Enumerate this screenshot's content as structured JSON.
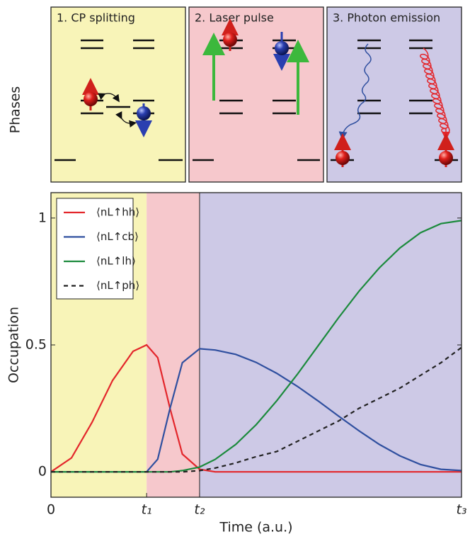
{
  "phases": {
    "label": "Phases",
    "panels": [
      {
        "title": "1. CP splitting",
        "color": "#f8f4b8"
      },
      {
        "title": "2. Laser pulse",
        "color": "#f6c8cc"
      },
      {
        "title": "3. Photon emission",
        "color": "#cdc9e6"
      }
    ]
  },
  "chart_data": {
    "type": "line",
    "x_label": "Time (a.u.)",
    "y_label": "Occupation",
    "x": [
      0,
      0.05,
      0.1,
      0.15,
      0.2,
      0.233,
      0.26,
      0.29,
      0.32,
      0.362,
      0.4,
      0.45,
      0.5,
      0.55,
      0.6,
      0.65,
      0.7,
      0.75,
      0.8,
      0.85,
      0.9,
      0.95,
      1
    ],
    "series": [
      {
        "name": "⟨nL↑hh⟩",
        "color": "#e3262b",
        "linestyle": "solid",
        "values": [
          0,
          0.055,
          0.195,
          0.36,
          0.475,
          0.5,
          0.45,
          0.25,
          0.07,
          0.01,
          0,
          0,
          0,
          0,
          0,
          0,
          0,
          0,
          0,
          0,
          0,
          0,
          0
        ]
      },
      {
        "name": "⟨nL↑cb⟩",
        "color": "#2f4f9f",
        "linestyle": "solid",
        "values": [
          0,
          0,
          0,
          0,
          0,
          0,
          0.05,
          0.25,
          0.43,
          0.485,
          0.48,
          0.463,
          0.431,
          0.388,
          0.337,
          0.28,
          0.22,
          0.162,
          0.108,
          0.063,
          0.029,
          0.01,
          0.005
        ]
      },
      {
        "name": "⟨nL↑lh⟩",
        "color": "#1b8a3c",
        "linestyle": "solid",
        "values": [
          0,
          0,
          0,
          0,
          0,
          0,
          0,
          0,
          0.005,
          0.019,
          0.049,
          0.108,
          0.186,
          0.28,
          0.384,
          0.495,
          0.606,
          0.711,
          0.804,
          0.882,
          0.942,
          0.978,
          0.99
        ]
      },
      {
        "name": "⟨nL↑ph⟩",
        "color": "#222222",
        "linestyle": "dashed",
        "values": [
          0,
          0,
          0,
          0,
          0,
          0,
          0,
          0,
          0,
          0.005,
          0.015,
          0.035,
          0.06,
          0.08,
          0.12,
          0.16,
          0.2,
          0.25,
          0.29,
          0.33,
          0.38,
          0.43,
          0.49
        ]
      }
    ],
    "xlim": [
      0,
      1
    ],
    "ylim": [
      -0.1,
      1.1
    ],
    "xticks": [
      0,
      {
        "value": 0.233,
        "label": "t₁"
      },
      {
        "value": 0.362,
        "label": "t₂"
      },
      {
        "value": 1,
        "label": "t₃"
      }
    ],
    "yticks": [
      0,
      0.5,
      1
    ],
    "legend": "upper left"
  }
}
